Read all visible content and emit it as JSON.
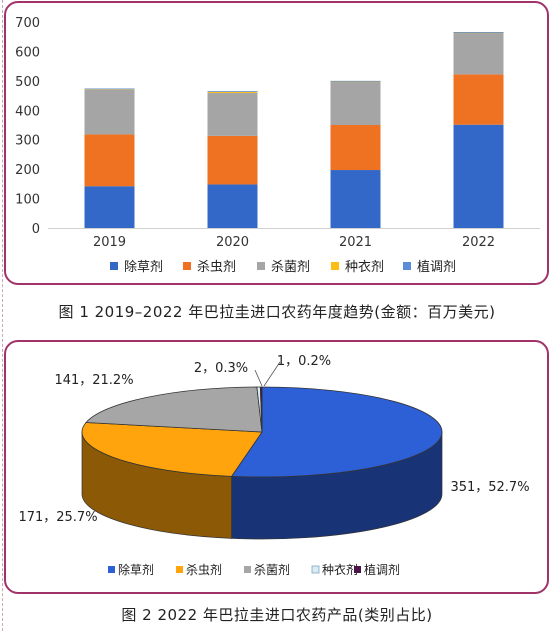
{
  "chart_data": [
    {
      "type": "bar",
      "stacked": true,
      "categories": [
        "2019",
        "2020",
        "2021",
        "2022"
      ],
      "series": [
        {
          "name": "除草剂",
          "color": "#3468c8",
          "values": [
            142,
            148,
            197,
            351
          ]
        },
        {
          "name": "杀虫剂",
          "color": "#ee7221",
          "values": [
            176,
            165,
            153,
            171
          ]
        },
        {
          "name": "杀菌剂",
          "color": "#a5a5a5",
          "values": [
            152,
            146,
            146,
            141
          ]
        },
        {
          "name": "种衣剂",
          "color": "#fbbd14",
          "values": [
            3,
            5,
            3,
            2
          ]
        },
        {
          "name": "植调剂",
          "color": "#5b8ed6",
          "values": [
            1,
            1,
            1,
            1
          ]
        }
      ],
      "ylim": [
        0,
        700
      ],
      "yticks": [
        0,
        100,
        200,
        300,
        400,
        500,
        600,
        700
      ],
      "legend_position": "bottom",
      "grid": false,
      "caption": "图 1  2019–2022 年巴拉圭进口农药年度趋势(金额：百万美元)"
    },
    {
      "type": "pie",
      "style": "3d",
      "slices": [
        {
          "name": "除草剂",
          "value": 351,
          "percent": "52.7%",
          "label": "351，52.7%",
          "color": "#2d5fd6"
        },
        {
          "name": "杀虫剂",
          "value": 171,
          "percent": "25.7%",
          "label": "171，25.7%",
          "color": "#ffa40d"
        },
        {
          "name": "杀菌剂",
          "value": 141,
          "percent": "21.2%",
          "label": "141，21.2%",
          "color": "#a6a6a6"
        },
        {
          "name": "种衣剂",
          "value": 2,
          "percent": "0.3%",
          "label": "2，0.3%",
          "color": "#d8ecf2"
        },
        {
          "name": "植调剂",
          "value": 1,
          "percent": "0.2%",
          "label": "1，0.2%",
          "color": "#4b1448"
        }
      ],
      "legend_position": "bottom",
      "caption": "图 2  2022 年巴拉圭进口农药产品(类别占比)"
    }
  ]
}
